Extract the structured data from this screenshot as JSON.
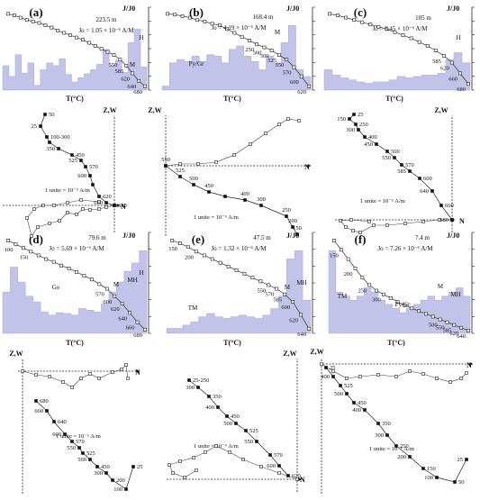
{
  "tc_axis_label": "T(°C)",
  "jj0_axis_label": "J/J0",
  "zij_axis": {
    "zw": "Z,W",
    "n": "N"
  },
  "unit_text": "1 unite = 10⁻⁶ A/m",
  "panels": [
    {
      "id": "(a)",
      "depth": "223.5 m",
      "jo": "Jo = 1.05 × 10⁻⁶ A/M",
      "mineral_labels": [
        "M",
        "H"
      ],
      "bars": [
        0.36,
        0.2,
        0.52,
        0.25,
        0.4,
        0.07,
        0.3,
        0.4,
        0.36,
        0.46,
        0.23,
        0.12,
        0.18,
        0.24,
        0.3,
        0.38,
        0.6,
        0.36,
        0.44,
        0.26,
        0.7,
        0.9,
        0.34
      ],
      "curve": [
        1,
        0.98,
        0.95,
        0.92,
        0.9,
        0.88,
        0.85,
        0.82,
        0.78,
        0.75,
        0.72,
        0.69,
        0.66,
        0.62,
        0.58,
        0.54,
        0.5,
        0.46,
        0.4,
        0.32,
        0.22,
        0.12,
        0.05
      ],
      "temp_labels": [
        "550",
        "585",
        "620",
        "640",
        "680"
      ],
      "zij_labels": [
        "50",
        "25",
        "100-300",
        "350",
        "450",
        "525",
        "570",
        "600",
        "620",
        "660",
        "680"
      ]
    },
    {
      "id": "(b)",
      "depth": "168.4 m",
      "jo": "Jo = 4.19 × 10⁻⁶ A/M",
      "mineral_labels": [
        "M",
        "Py/Gr"
      ],
      "bars": [
        0.06,
        0.4,
        0.45,
        0.42,
        0.5,
        0.42,
        0.52,
        0.5,
        0.4,
        0.6,
        0.65,
        0.5,
        0.42,
        0.3,
        0.5,
        0.4,
        0.7,
        0.95,
        0.3,
        0.2
      ],
      "curve": [
        1,
        0.99,
        0.97,
        0.95,
        0.92,
        0.9,
        0.87,
        0.85,
        0.8,
        0.75,
        0.7,
        0.65,
        0.6,
        0.56,
        0.52,
        0.46,
        0.4,
        0.3,
        0.18,
        0.05
      ],
      "temp_labels": [
        "250",
        "300",
        "500",
        "525",
        "550",
        "570",
        "600",
        "620"
      ],
      "zij_labels": [
        "550",
        "525",
        "500",
        "450",
        "400",
        "300",
        "250",
        "200",
        "150"
      ]
    },
    {
      "id": "(c)",
      "depth": "105 m",
      "jo": "Jo = 6.45 × 10⁻⁶ A/M",
      "mineral_labels": [
        "H"
      ],
      "bars": [
        0.3,
        0.22,
        0.18,
        0.15,
        0.12,
        0.1,
        0.12,
        0.12,
        0.15,
        0.2,
        0.18,
        0.2,
        0.22,
        0.22,
        0.25,
        0.45,
        0.55,
        0.4
      ],
      "curve": [
        1,
        0.98,
        0.95,
        0.92,
        0.89,
        0.86,
        0.83,
        0.8,
        0.76,
        0.72,
        0.68,
        0.63,
        0.58,
        0.52,
        0.45,
        0.36,
        0.22,
        0.08
      ],
      "temp_labels": [
        "585",
        "620",
        "660",
        "680"
      ],
      "zij_labels": [
        "25",
        "150",
        "250",
        "300",
        "400",
        "450",
        "500",
        "550",
        "570",
        "585",
        "600",
        "640",
        "660",
        "680"
      ]
    },
    {
      "id": "(d)",
      "depth": "79.6 m",
      "jo": "Jo = 5.69 × 10⁻⁶ A/M",
      "mineral_labels": [
        "Go",
        "M",
        "MH",
        "H"
      ],
      "bars": [
        0.5,
        0.8,
        0.62,
        0.45,
        0.38,
        0.26,
        0.22,
        0.25,
        0.24,
        0.22,
        0.3,
        0.28,
        0.26,
        0.36,
        0.5,
        0.62,
        0.75,
        0.85,
        1.0
      ],
      "curve": [
        1,
        0.96,
        0.92,
        0.88,
        0.84,
        0.8,
        0.77,
        0.73,
        0.7,
        0.66,
        0.62,
        0.58,
        0.53,
        0.48,
        0.4,
        0.32,
        0.22,
        0.12,
        0.04
      ],
      "temp_labels": [
        "100",
        "150",
        "570",
        "600",
        "620",
        "640",
        "660",
        "680"
      ],
      "zij_labels": [
        "680",
        "660",
        "640",
        "600",
        "570",
        "550",
        "525",
        "500",
        "450",
        "300",
        "200",
        "100",
        "25"
      ]
    },
    {
      "id": "(e)",
      "depth": "47.5 m",
      "jo": "Jo = 1.32 × 10⁻⁶ A/M",
      "mineral_labels": [
        "TM",
        "M",
        "MH"
      ],
      "bars": [
        0.06,
        0.06,
        0.1,
        0.14,
        0.2,
        0.24,
        0.2,
        0.18,
        0.2,
        0.22,
        0.2,
        0.18,
        0.22,
        0.3,
        0.45,
        0.9,
        1.0,
        0.4
      ],
      "curve": [
        1,
        0.97,
        0.93,
        0.88,
        0.84,
        0.8,
        0.76,
        0.72,
        0.68,
        0.64,
        0.6,
        0.56,
        0.52,
        0.48,
        0.42,
        0.34,
        0.2,
        0.05
      ],
      "temp_labels": [
        "150",
        "200",
        "550",
        "570",
        "585",
        "600",
        "620",
        "640"
      ],
      "zij_labels": [
        "25-250",
        "300",
        "350",
        "400",
        "450",
        "500",
        "525",
        "550",
        "570",
        "600",
        "620"
      ]
    },
    {
      "id": "(f)",
      "depth": "7.4 m",
      "jo": "Jo = 7.26 × 10⁻⁶ A/M",
      "mineral_labels": [
        "TM",
        "Py/Gr",
        "M",
        "MH"
      ],
      "bars": [
        1.0,
        0.5,
        0.45,
        0.4,
        0.45,
        0.55,
        0.5,
        0.4,
        0.35,
        0.3,
        0.25,
        0.3,
        0.35,
        0.4,
        0.45,
        0.4,
        0.45,
        0.5,
        0.55,
        0.45
      ],
      "curve": [
        1,
        0.9,
        0.8,
        0.7,
        0.6,
        0.52,
        0.46,
        0.42,
        0.38,
        0.34,
        0.3,
        0.27,
        0.24,
        0.21,
        0.18,
        0.15,
        0.12,
        0.09,
        0.06,
        0.03
      ],
      "temp_labels": [
        "150",
        "200",
        "250",
        "300",
        "500",
        "550",
        "585",
        "620",
        "640"
      ],
      "zij_labels": [
        "25",
        "400",
        "525",
        "500",
        "450",
        "400",
        "350",
        "300",
        "250",
        "200",
        "150",
        "100",
        "50",
        "25"
      ]
    }
  ]
}
